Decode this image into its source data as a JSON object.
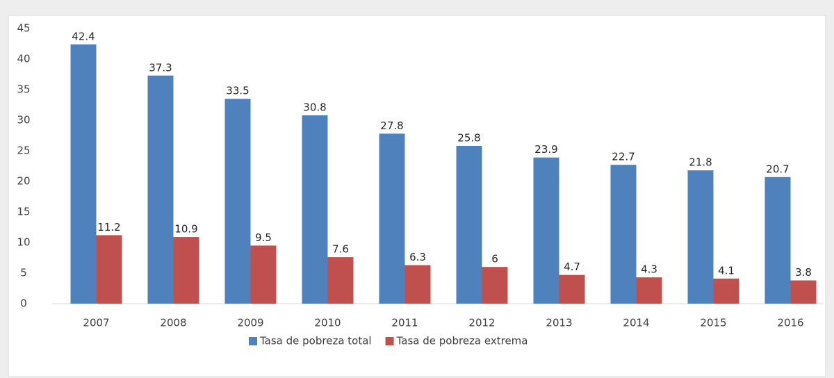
{
  "chart_data": {
    "type": "bar",
    "categories": [
      "2007",
      "2008",
      "2009",
      "2010",
      "2011",
      "2012",
      "2013",
      "2014",
      "2015",
      "2016"
    ],
    "series": [
      {
        "name": "Tasa de pobreza total",
        "color": "#4f81bd",
        "values": [
          42.4,
          37.3,
          33.5,
          30.8,
          27.8,
          25.8,
          23.9,
          22.7,
          21.8,
          20.7
        ]
      },
      {
        "name": "Tasa de pobreza extrema",
        "color": "#c0504d",
        "values": [
          11.2,
          10.9,
          9.5,
          7.6,
          6.3,
          6,
          4.7,
          4.3,
          4.1,
          3.8
        ]
      }
    ],
    "ylim": [
      0,
      45
    ],
    "yticks": [
      0,
      5,
      10,
      15,
      20,
      25,
      30,
      35,
      40,
      45
    ],
    "grid": false,
    "legend": "bottom"
  }
}
